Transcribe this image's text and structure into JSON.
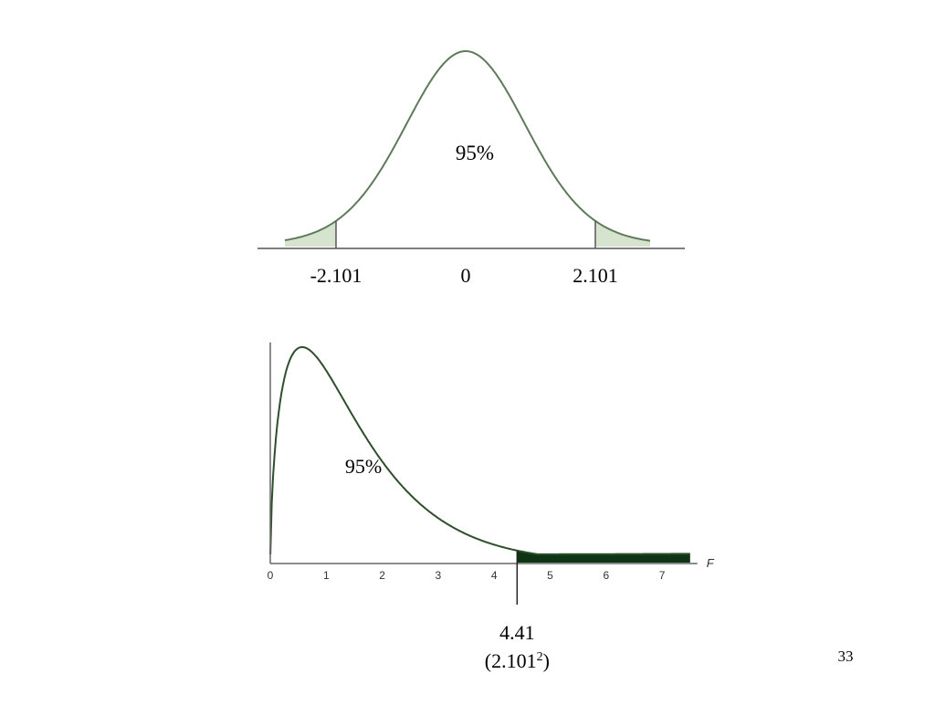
{
  "page_number": "33",
  "chart_data": [
    {
      "type": "area",
      "distribution": "t",
      "xlim": [
        -3.5,
        3.5
      ],
      "center_region_label": "95%",
      "critical_values": [
        -2.101,
        2.101
      ],
      "tick_labels": [
        {
          "value": -2.101,
          "label": "-2.101"
        },
        {
          "value": 0,
          "label": "0"
        },
        {
          "value": 2.101,
          "label": "2.101"
        }
      ],
      "shaded_tails": [
        [
          -3.5,
          -2.101
        ],
        [
          2.101,
          3.5
        ]
      ],
      "colors": {
        "curve": "#5f7a5b",
        "tail_fill": "#d5e3cf",
        "axis": "#555555"
      }
    },
    {
      "type": "area",
      "distribution": "F",
      "xlim": [
        0,
        7.5
      ],
      "x_ticks": [
        0,
        1,
        2,
        3,
        4,
        5,
        6,
        7
      ],
      "x_tick_labels": [
        "0",
        "1",
        "2",
        "3",
        "4",
        "5",
        "6",
        "7"
      ],
      "xlabel": "F",
      "region_label": "95%",
      "critical_value": 4.41,
      "critical_value_label": "4.41",
      "critical_value_note": {
        "base": "(2.101",
        "superscript": "2",
        "close": ")"
      },
      "shaded_tail": [
        4.41,
        7.5
      ],
      "colors": {
        "curve": "#2e4f2c",
        "tail_fill": "#0e3416",
        "axis": "#666666"
      }
    }
  ]
}
